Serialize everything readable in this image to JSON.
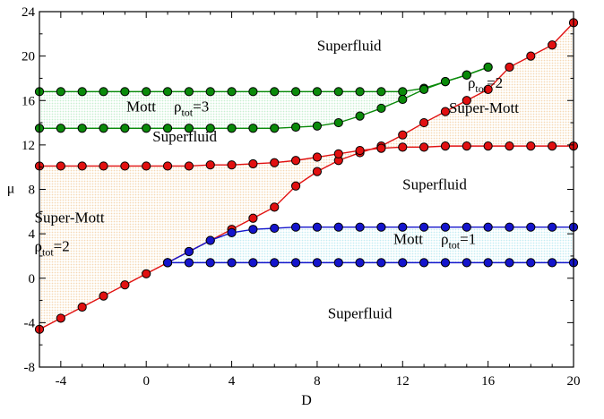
{
  "chart_data": {
    "type": "line",
    "title": "",
    "xlabel": "D",
    "ylabel": "μ",
    "xlim": [
      -5,
      20
    ],
    "ylim": [
      -8,
      24
    ],
    "xticks": [
      -4,
      0,
      4,
      8,
      12,
      16,
      20
    ],
    "yticks": [
      -8,
      -4,
      0,
      4,
      8,
      12,
      16,
      20,
      24
    ],
    "grid": false,
    "legend": "none",
    "series": [
      {
        "color": "#e11010",
        "x": [
          -5,
          -4,
          -3,
          -2,
          -1,
          0,
          1,
          2,
          3,
          4,
          5,
          6,
          7,
          8,
          9,
          10,
          11,
          12,
          13,
          14,
          15,
          16,
          17,
          18,
          19,
          20
        ],
        "y": [
          -4.6,
          -3.6,
          -2.6,
          -1.6,
          -0.6,
          0.4,
          1.4,
          2.4,
          3.4,
          4.4,
          5.4,
          6.4,
          8.3,
          9.6,
          10.6,
          11.3,
          11.9,
          12.9,
          14,
          15,
          16,
          17,
          19,
          20,
          21,
          23
        ]
      },
      {
        "color": "#e11010",
        "x": [
          -5,
          -4,
          -3,
          -2,
          -1,
          0,
          1,
          2,
          3,
          4,
          5,
          6,
          7,
          8,
          9,
          10,
          11,
          12,
          13,
          14,
          15,
          16,
          17,
          18,
          19,
          20
        ],
        "y": [
          10.1,
          10.1,
          10.1,
          10.1,
          10.1,
          10.1,
          10.1,
          10.1,
          10.2,
          10.2,
          10.3,
          10.4,
          10.6,
          10.9,
          11.2,
          11.5,
          11.7,
          11.8,
          11.8,
          11.9,
          11.9,
          11.9,
          11.9,
          11.9,
          11.9,
          11.9
        ]
      },
      {
        "color": "#0a8a0a",
        "x": [
          -5,
          -4,
          -3,
          -2,
          -1,
          0,
          1,
          2,
          3,
          4,
          5,
          6,
          7,
          8,
          9,
          10,
          11,
          12,
          13,
          14,
          15,
          16
        ],
        "y": [
          16.8,
          16.8,
          16.8,
          16.8,
          16.8,
          16.8,
          16.8,
          16.8,
          16.8,
          16.8,
          16.8,
          16.8,
          16.8,
          16.8,
          16.8,
          16.8,
          16.8,
          16.8,
          17.1,
          17.7,
          18.3,
          19
        ]
      },
      {
        "color": "#0a8a0a",
        "x": [
          -5,
          -4,
          -3,
          -2,
          -1,
          0,
          1,
          2,
          3,
          4,
          5,
          6,
          7,
          8,
          9,
          10,
          11,
          12,
          13,
          14,
          15,
          16
        ],
        "y": [
          13.5,
          13.5,
          13.5,
          13.5,
          13.5,
          13.5,
          13.5,
          13.5,
          13.5,
          13.5,
          13.5,
          13.5,
          13.6,
          13.7,
          14,
          14.6,
          15.3,
          16.1,
          17,
          17.7,
          18.3,
          19
        ]
      },
      {
        "color": "#1515cc",
        "x": [
          1,
          2,
          3,
          4,
          5,
          6,
          7,
          8,
          9,
          10,
          11,
          12,
          13,
          14,
          15,
          16,
          17,
          18,
          19,
          20
        ],
        "y": [
          1.4,
          2.4,
          3.4,
          4.1,
          4.4,
          4.5,
          4.6,
          4.6,
          4.6,
          4.6,
          4.6,
          4.6,
          4.6,
          4.6,
          4.6,
          4.6,
          4.6,
          4.6,
          4.6,
          4.6
        ]
      },
      {
        "color": "#1515cc",
        "x": [
          1,
          2,
          3,
          4,
          5,
          6,
          7,
          8,
          9,
          10,
          11,
          12,
          13,
          14,
          15,
          16,
          17,
          18,
          19,
          20
        ],
        "y": [
          1.4,
          1.4,
          1.4,
          1.4,
          1.4,
          1.4,
          1.4,
          1.4,
          1.4,
          1.4,
          1.4,
          1.4,
          1.4,
          1.4,
          1.4,
          1.4,
          1.4,
          1.4,
          1.4,
          1.4
        ]
      }
    ],
    "regions": [
      {
        "type": "superfluid",
        "text": "Superfluid",
        "x": 9.5,
        "y": 20.5
      },
      {
        "type": "superfluid",
        "text": "Superfluid",
        "x": 1.8,
        "y": 12.3
      },
      {
        "type": "superfluid",
        "text": "Superfluid",
        "x": 13.5,
        "y": 8
      },
      {
        "type": "superfluid",
        "text": "Superfluid",
        "x": 10,
        "y": -3.6
      },
      {
        "type": "mott",
        "text": "Mott",
        "sym": "ρ",
        "sub": "tot",
        "val": "=3",
        "x": 1.5,
        "y": 15
      },
      {
        "type": "mott",
        "text": "Mott",
        "sym": "ρ",
        "sub": "tot",
        "val": "=1",
        "x": 14,
        "y": 3.1
      },
      {
        "type": "supermott",
        "text": "Super-Mott",
        "sym": "ρ",
        "sub": "tot",
        "val": "=2",
        "x": -3.3,
        "y": 5
      },
      {
        "type": "supermott",
        "text": "Super-Mott",
        "sym": "ρ",
        "sub": "tot",
        "val": "=2",
        "x": 16.6,
        "y": 16.5
      }
    ],
    "fills": [
      {
        "between": [
          0,
          1
        ],
        "color": "#f5d9b5"
      },
      {
        "between": [
          2,
          3
        ],
        "color": "#c8efd1"
      },
      {
        "between": [
          4,
          5
        ],
        "color": "#c5ecf3"
      }
    ]
  }
}
